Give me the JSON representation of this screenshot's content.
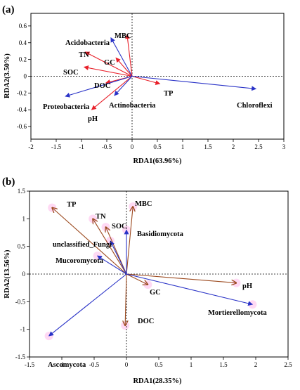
{
  "chart_data": [
    {
      "type": "biplot",
      "panel_label": "(a)",
      "xlabel": "RDA1(63.96%)",
      "ylabel": "RDA2(3.50%)",
      "xlim": [
        -2,
        3
      ],
      "ylim": [
        -0.75,
        0.75
      ],
      "xticks": [
        -2,
        -1.5,
        -1,
        -0.5,
        0,
        0.5,
        1,
        1.5,
        2,
        2.5,
        3
      ],
      "yticks": [
        -0.6,
        -0.4,
        -0.2,
        0,
        0.2,
        0.4,
        0.6
      ],
      "colors": {
        "environment": "#e8202a",
        "taxa": "#2a33c7"
      },
      "vectors": [
        {
          "label": "MBC",
          "group": "environment",
          "x": -0.1,
          "y": 0.5
        },
        {
          "label": "GC",
          "group": "environment",
          "x": -0.32,
          "y": 0.22
        },
        {
          "label": "TN",
          "group": "environment",
          "x": -0.93,
          "y": 0.29
        },
        {
          "label": "SOC",
          "group": "environment",
          "x": -0.95,
          "y": 0.11
        },
        {
          "label": "DOC",
          "group": "environment",
          "x": -0.52,
          "y": -0.08
        },
        {
          "label": "TP",
          "group": "environment",
          "x": 0.55,
          "y": -0.09
        },
        {
          "label": "pH",
          "group": "environment",
          "x": -0.8,
          "y": -0.4
        },
        {
          "label": "Acidobacteria",
          "group": "taxa",
          "x": -0.42,
          "y": 0.46
        },
        {
          "label": "Proteobacteria",
          "group": "taxa",
          "x": -1.32,
          "y": -0.24
        },
        {
          "label": "Actinobacteria",
          "group": "taxa",
          "x": -0.35,
          "y": -0.23
        },
        {
          "label": "Chloroflexi",
          "group": "taxa",
          "x": 2.45,
          "y": -0.15
        }
      ]
    },
    {
      "type": "biplot",
      "panel_label": "(b)",
      "xlabel": "RDA1(28.35%)",
      "ylabel": "RDA2(13.56%)",
      "xlim": [
        -1.5,
        2.5
      ],
      "ylim": [
        -1.5,
        1.5
      ],
      "xticks": [
        -1.5,
        -1,
        -0.5,
        0,
        0.5,
        1,
        1.5,
        2,
        2.5
      ],
      "yticks": [
        -1.5,
        -1,
        -0.5,
        0,
        0.5,
        1,
        1.5
      ],
      "colors": {
        "environment": "#9c4a1f",
        "taxa": "#2a33c7",
        "highlight": "#ffd2f2"
      },
      "vectors": [
        {
          "label": "TP",
          "group": "environment",
          "x": -1.15,
          "y": 1.2
        },
        {
          "label": "TN",
          "group": "environment",
          "x": -0.52,
          "y": 1.0
        },
        {
          "label": "SOC",
          "group": "environment",
          "x": -0.32,
          "y": 0.85
        },
        {
          "label": "MBC",
          "group": "environment",
          "x": 0.1,
          "y": 1.22
        },
        {
          "label": "GC",
          "group": "environment",
          "x": 0.33,
          "y": -0.19
        },
        {
          "label": "DOC",
          "group": "environment",
          "x": -0.02,
          "y": -0.93
        },
        {
          "label": "pH",
          "group": "environment",
          "x": 1.7,
          "y": -0.16
        },
        {
          "label": "Basidiomycota",
          "group": "taxa",
          "x": 0.0,
          "y": 0.8
        },
        {
          "label": "unclassified_Fungi",
          "group": "taxa",
          "x": -0.25,
          "y": 0.6
        },
        {
          "label": "Mucoromycota",
          "group": "taxa",
          "x": -0.45,
          "y": 0.33
        },
        {
          "label": "Mortierellomycota",
          "group": "taxa",
          "x": 1.95,
          "y": -0.55
        },
        {
          "label": "Ascomycota",
          "group": "taxa",
          "x": -1.2,
          "y": -1.12
        }
      ]
    }
  ],
  "text": {
    "a": {
      "MBC": "MBC",
      "GC": "GC",
      "TN": "TN",
      "SOC": "SOC",
      "DOC": "DOC",
      "TP": "TP",
      "pH": "pH",
      "Acidobacteria": "Acidobacteria",
      "Proteobacteria": "Proteobacteria",
      "Actinobacteria": "Actinobacteria",
      "Chloroflexi": "Chloroflexi"
    },
    "b": {
      "TP": "TP",
      "TN": "TN",
      "SOC": "SOC",
      "MBC": "MBC",
      "GC": "GC",
      "DOC": "DOC",
      "pH": "pH",
      "Basidiomycota": "Basidiomycota",
      "unclassified_Fungi": "unclassified_Fungi",
      "Mucoromycota": "Mucoromycota",
      "Mortierellomycota": "Mortierellomycota",
      "Ascomycota": "Ascomycota"
    }
  }
}
